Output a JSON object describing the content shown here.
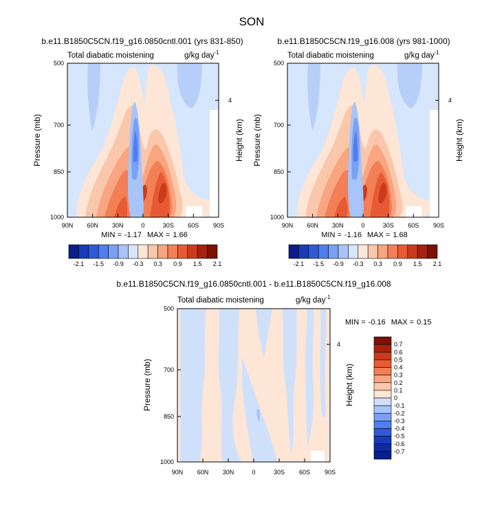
{
  "figure_title": "SON",
  "chart_data": [
    {
      "type": "contour",
      "title": "b.e11.B1850C5CN.f19_g16.0850cntl.001 (yrs 831-850)",
      "left_label": "Total diabatic moistening",
      "right_label": "g/kg day",
      "unit_exp": "-1",
      "ylabel": "Pressure (mb)",
      "y2label": "Height (km)",
      "y2_ticks": [
        "4"
      ],
      "y_ticks": [
        "500",
        "700",
        "850",
        "1000"
      ],
      "x_ticks": [
        "90N",
        "60N",
        "30N",
        "0",
        "30S",
        "60S",
        "90S"
      ],
      "min_label": "MIN =",
      "min_value": "-1.17",
      "max_label": "MAX =",
      "max_value": "1.66",
      "colorbar_labels": [
        "-2.1",
        "-1.5",
        "-0.9",
        "-0.3",
        "0.3",
        "0.9",
        "1.5",
        "2.1"
      ]
    },
    {
      "type": "contour",
      "title": "b.e11.B1850C5CN.f19_g16.008 (yrs 981-1000)",
      "left_label": "Total diabatic moistening",
      "right_label": "g/kg day",
      "unit_exp": "-1",
      "ylabel": "Pressure (mb)",
      "y2label": "Height (km)",
      "y2_ticks": [
        "4"
      ],
      "y_ticks": [
        "500",
        "700",
        "850",
        "1000"
      ],
      "x_ticks": [
        "90N",
        "60N",
        "30N",
        "0",
        "30S",
        "60S",
        "90S"
      ],
      "min_label": "MIN =",
      "min_value": "-1.16",
      "max_label": "MAX =",
      "max_value": "1.68",
      "colorbar_labels": [
        "-2.1",
        "-1.5",
        "-0.9",
        "-0.3",
        "0.3",
        "0.9",
        "1.5",
        "2.1"
      ]
    },
    {
      "type": "contour",
      "title": "b.e11.B1850C5CN.f19_g16.0850cntl.001 - b.e11.B1850C5CN.f19_g16.008",
      "left_label": "Total diabatic moistening",
      "right_label": "g/kg day",
      "unit_exp": "-1",
      "ylabel": "Pressure (mb)",
      "y2label": "Height (km)",
      "y2_ticks": [
        "4"
      ],
      "y_ticks": [
        "500",
        "700",
        "850",
        "1000"
      ],
      "x_ticks": [
        "90N",
        "60N",
        "30N",
        "0",
        "30S",
        "60S",
        "90S"
      ],
      "min_label": "MIN =",
      "min_value": "-0.16",
      "max_label": "MAX =",
      "max_value": "0.15",
      "colorbar_labels": [
        "0.7",
        "0.6",
        "0.5",
        "0.4",
        "0.3",
        "0.2",
        "0.1",
        "0",
        "-0.1",
        "-0.2",
        "-0.3",
        "-0.4",
        "-0.5",
        "-0.6",
        "-0.7"
      ]
    }
  ],
  "colors": {
    "neg": [
      "#0a1e8c",
      "#1a3bb8",
      "#2f5ad8",
      "#4f7ef0",
      "#7aa0f5",
      "#a8c4f8",
      "#d6e6fc"
    ],
    "pos": [
      "#fde6d6",
      "#fbc7aa",
      "#f8a580",
      "#f27f55",
      "#e85a33",
      "#cc3a1c",
      "#a5230f",
      "#7a1206"
    ],
    "background_field": "#d6e6fc",
    "diff_neg": [
      "#0a1e8c",
      "#1a3bb8",
      "#2f5ad8",
      "#4f7ef0",
      "#7aa0f5",
      "#a8c4f8",
      "#cfe0fb"
    ],
    "diff_pos": [
      "#fde6d6",
      "#fbc7aa",
      "#f8a580",
      "#f27f55",
      "#e85a33",
      "#cc3a1c",
      "#7a1206"
    ]
  }
}
